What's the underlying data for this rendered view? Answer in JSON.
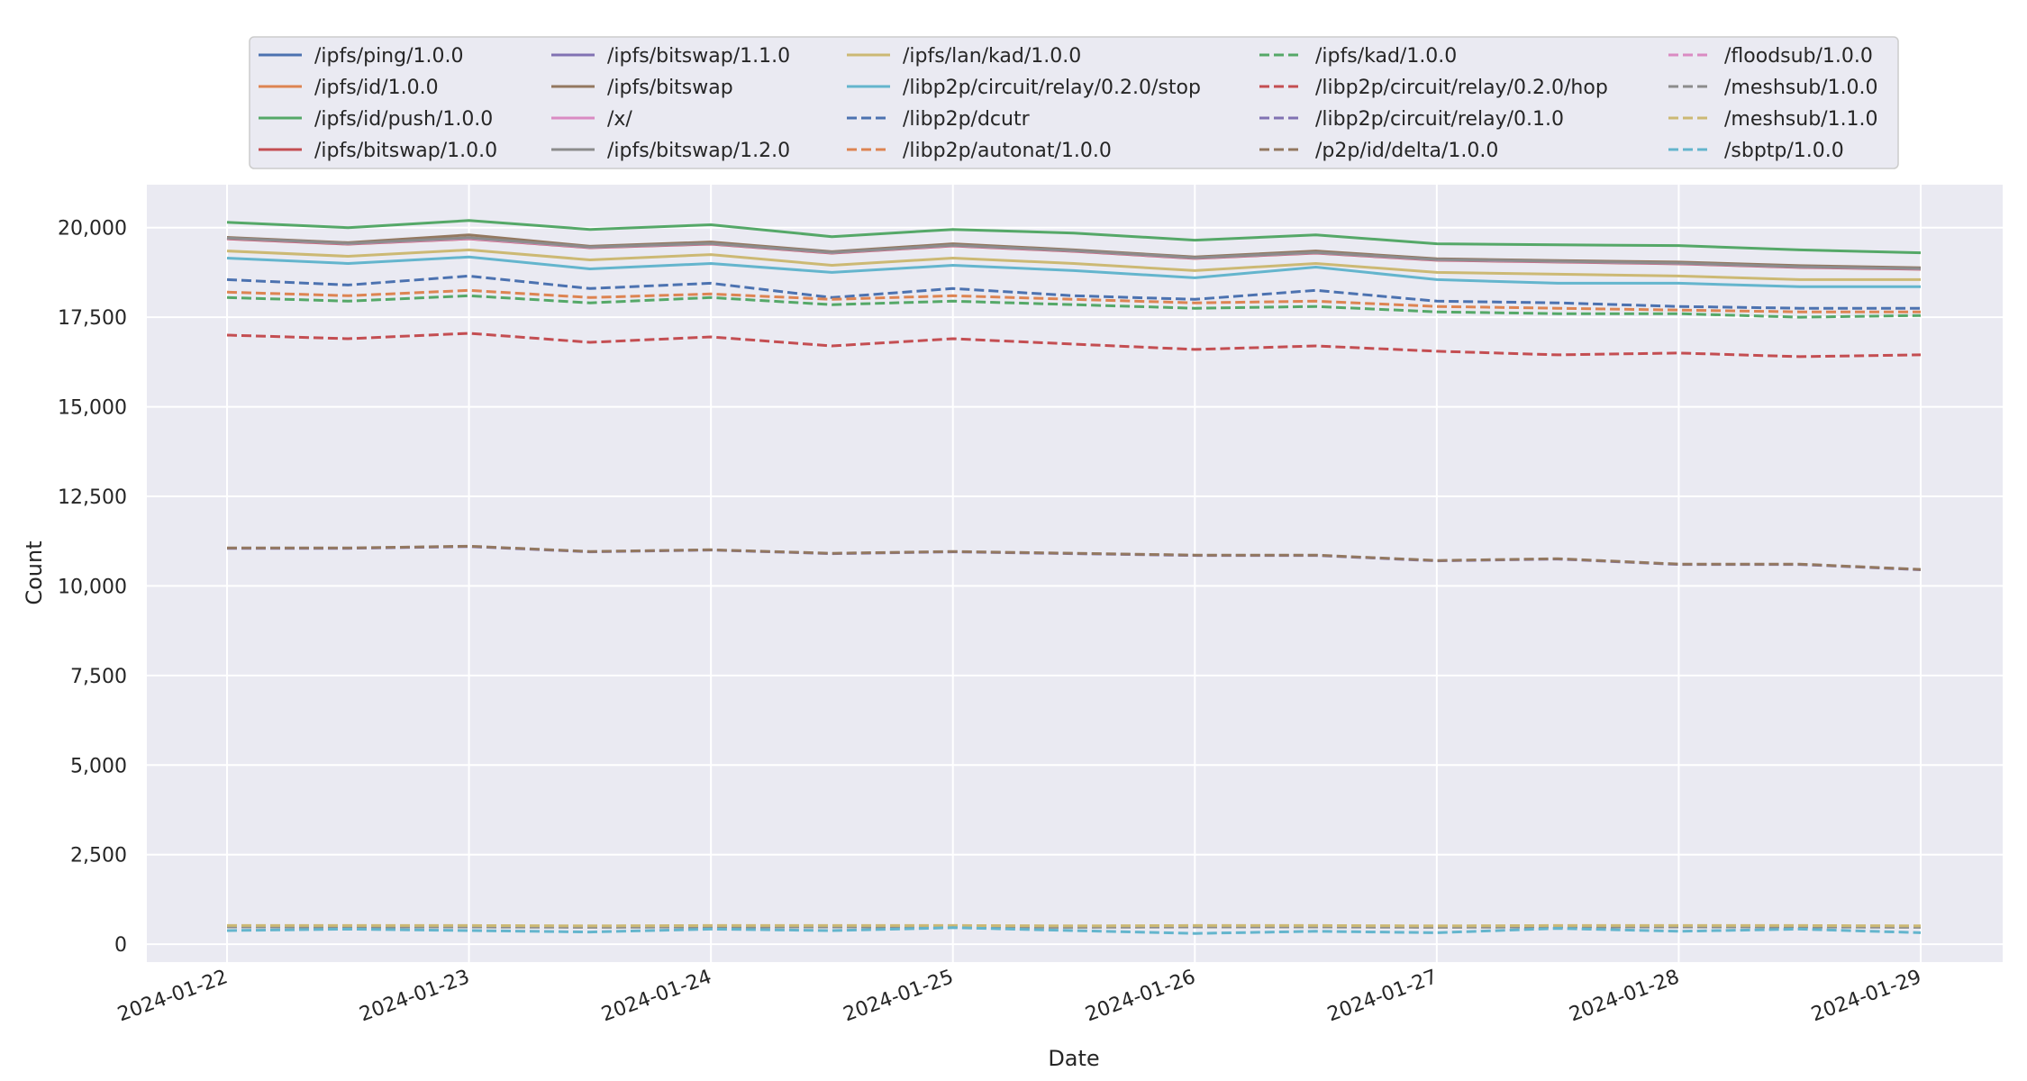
{
  "chart_data": {
    "type": "line",
    "xlabel": "Date",
    "ylabel": "Count",
    "x_range": [
      "2024-01-22",
      "2024-01-29"
    ],
    "x_ticks": [
      "2024-01-22",
      "2024-01-23",
      "2024-01-24",
      "2024-01-25",
      "2024-01-26",
      "2024-01-27",
      "2024-01-28",
      "2024-01-29"
    ],
    "ylim": [
      -500,
      21200
    ],
    "y_ticks": [
      0,
      2500,
      5000,
      7500,
      10000,
      12500,
      15000,
      17500,
      20000
    ],
    "y_tick_labels": [
      "0",
      "2,500",
      "5,000",
      "7,500",
      "10,000",
      "12,500",
      "15,000",
      "17,500",
      "20,000"
    ],
    "grid": true,
    "legend_position": "top-center",
    "legend_columns": 5,
    "background": "#eaeaf2",
    "series": [
      {
        "name": "/ipfs/ping/1.0.0",
        "color": "#4c72b0",
        "dash": "solid",
        "values": [
          19700,
          19550,
          19700,
          19450,
          19550,
          19300,
          19500,
          19350,
          19150,
          19300,
          19100,
          19050,
          19000,
          18900,
          18850
        ]
      },
      {
        "name": "/ipfs/id/1.0.0",
        "color": "#dd8452",
        "dash": "solid",
        "values": [
          19720,
          19570,
          19720,
          19470,
          19570,
          19320,
          19520,
          19370,
          19170,
          19320,
          19120,
          19070,
          19020,
          18920,
          18870
        ]
      },
      {
        "name": "/ipfs/id/push/1.0.0",
        "color": "#55a868",
        "dash": "solid",
        "values": [
          20150,
          20000,
          20200,
          19950,
          20080,
          19750,
          19950,
          19850,
          19650,
          19800,
          19550,
          19520,
          19500,
          19380,
          19300
        ]
      },
      {
        "name": "/ipfs/bitswap/1.0.0",
        "color": "#c44e52",
        "dash": "solid",
        "values": [
          19690,
          19540,
          19690,
          19440,
          19540,
          19290,
          19490,
          19340,
          19140,
          19290,
          19090,
          19040,
          18990,
          18890,
          18840
        ]
      },
      {
        "name": "/ipfs/bitswap/1.1.0",
        "color": "#8172b3",
        "dash": "solid",
        "values": [
          19710,
          19560,
          19710,
          19460,
          19560,
          19310,
          19510,
          19360,
          19160,
          19310,
          19110,
          19060,
          19010,
          18910,
          18860
        ]
      },
      {
        "name": "/ipfs/bitswap",
        "color": "#937860",
        "dash": "solid",
        "values": [
          19730,
          19580,
          19800,
          19480,
          19600,
          19330,
          19550,
          19380,
          19180,
          19350,
          19130,
          19080,
          19040,
          18940,
          18880
        ]
      },
      {
        "name": "/x/",
        "color": "#da8bc3",
        "dash": "solid",
        "values": [
          19700,
          19550,
          19700,
          19450,
          19550,
          19300,
          19500,
          19350,
          19150,
          19300,
          19100,
          19050,
          19000,
          18900,
          18850
        ]
      },
      {
        "name": "/ipfs/bitswap/1.2.0",
        "color": "#8c8c8c",
        "dash": "solid",
        "values": [
          19710,
          19560,
          19720,
          19460,
          19560,
          19310,
          19510,
          19360,
          19160,
          19310,
          19110,
          19060,
          19010,
          18910,
          18860
        ]
      },
      {
        "name": "/ipfs/lan/kad/1.0.0",
        "color": "#ccb974",
        "dash": "solid",
        "values": [
          19350,
          19200,
          19380,
          19100,
          19250,
          18950,
          19150,
          19000,
          18800,
          19000,
          18750,
          18700,
          18650,
          18550,
          18550
        ]
      },
      {
        "name": "/libp2p/circuit/relay/0.2.0/stop",
        "color": "#64b5cd",
        "dash": "solid",
        "values": [
          19150,
          19000,
          19180,
          18850,
          19000,
          18750,
          18950,
          18800,
          18600,
          18900,
          18550,
          18450,
          18450,
          18350,
          18350
        ]
      },
      {
        "name": "/libp2p/dcutr",
        "color": "#4c72b0",
        "dash": "dashed",
        "values": [
          18550,
          18400,
          18650,
          18300,
          18450,
          18050,
          18300,
          18100,
          18000,
          18250,
          17950,
          17900,
          17800,
          17750,
          17750
        ]
      },
      {
        "name": "/libp2p/autonat/1.0.0",
        "color": "#dd8452",
        "dash": "dashed",
        "values": [
          18200,
          18100,
          18250,
          18050,
          18150,
          18000,
          18100,
          18000,
          17900,
          17950,
          17800,
          17750,
          17700,
          17650,
          17650
        ]
      },
      {
        "name": "/ipfs/kad/1.0.0",
        "color": "#55a868",
        "dash": "dashed",
        "values": [
          18050,
          17950,
          18100,
          17900,
          18050,
          17850,
          17950,
          17850,
          17750,
          17800,
          17650,
          17600,
          17600,
          17500,
          17550
        ]
      },
      {
        "name": "/libp2p/circuit/relay/0.2.0/hop",
        "color": "#c44e52",
        "dash": "dashed",
        "values": [
          17000,
          16900,
          17050,
          16800,
          16950,
          16700,
          16900,
          16750,
          16600,
          16700,
          16550,
          16450,
          16500,
          16400,
          16450
        ]
      },
      {
        "name": "/libp2p/circuit/relay/0.1.0",
        "color": "#8172b3",
        "dash": "dashed",
        "values": [
          11050,
          11050,
          11100,
          10950,
          11000,
          10900,
          10950,
          10900,
          10850,
          10850,
          10700,
          10750,
          10600,
          10600,
          10450
        ]
      },
      {
        "name": "/p2p/id/delta/1.0.0",
        "color": "#937860",
        "dash": "dashed",
        "values": [
          11060,
          11060,
          11110,
          10960,
          11010,
          10910,
          10960,
          10910,
          10860,
          10860,
          10710,
          10760,
          10610,
          10610,
          10460
        ]
      },
      {
        "name": "/floodsub/1.0.0",
        "color": "#da8bc3",
        "dash": "dashed",
        "values": [
          500,
          500,
          500,
          490,
          500,
          500,
          500,
          490,
          500,
          500,
          490,
          500,
          500,
          500,
          490
        ]
      },
      {
        "name": "/meshsub/1.0.0",
        "color": "#8c8c8c",
        "dash": "dashed",
        "values": [
          480,
          480,
          480,
          470,
          480,
          480,
          480,
          470,
          480,
          480,
          470,
          480,
          480,
          480,
          470
        ]
      },
      {
        "name": "/meshsub/1.1.0",
        "color": "#ccb974",
        "dash": "dashed",
        "values": [
          520,
          520,
          520,
          510,
          520,
          520,
          520,
          510,
          520,
          520,
          510,
          520,
          520,
          520,
          510
        ]
      },
      {
        "name": "/sbptp/1.0.0",
        "color": "#64b5cd",
        "dash": "dashed",
        "values": [
          380,
          420,
          380,
          340,
          420,
          380,
          460,
          380,
          300,
          360,
          320,
          440,
          360,
          420,
          320
        ]
      }
    ]
  }
}
